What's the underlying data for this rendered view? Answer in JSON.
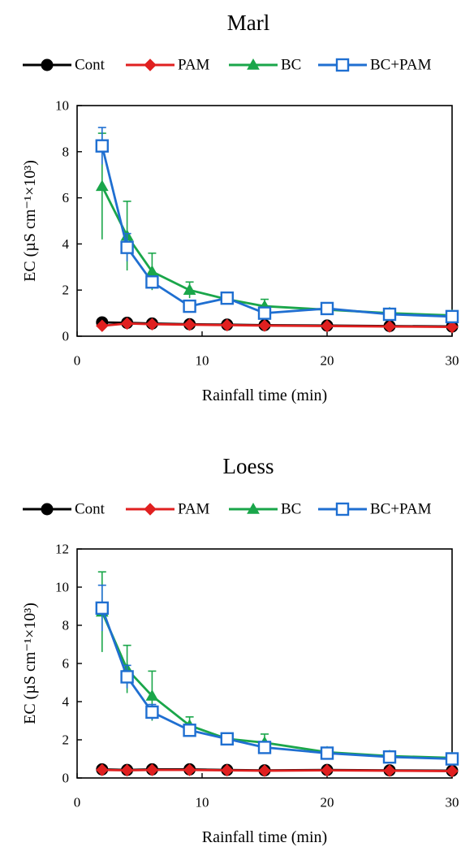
{
  "chart_data": [
    {
      "type": "line",
      "title": "Marl",
      "xlabel": "Rainfall time (min)",
      "ylabel": "EC (µS cm⁻¹×10³)",
      "xlim": [
        0,
        30
      ],
      "ylim": [
        0,
        10
      ],
      "xticks": [
        0,
        10,
        20,
        30
      ],
      "yticks": [
        0,
        2,
        4,
        6,
        8,
        10
      ],
      "grid": false,
      "legend_position": "top",
      "x": [
        2,
        4,
        6,
        9,
        12,
        15,
        20,
        25,
        30
      ],
      "series": [
        {
          "name": "Cont",
          "color": "#000000",
          "marker": "circle",
          "values": [
            0.6,
            0.58,
            0.55,
            0.52,
            0.5,
            0.48,
            0.46,
            0.44,
            0.42
          ],
          "err": []
        },
        {
          "name": "PAM",
          "color": "#e02020",
          "marker": "diamond",
          "values": [
            0.45,
            0.55,
            0.52,
            0.5,
            0.48,
            0.46,
            0.44,
            0.42,
            0.4
          ],
          "err": []
        },
        {
          "name": "BC",
          "color": "#1aa64a",
          "marker": "triangle",
          "values": [
            6.5,
            4.35,
            2.8,
            2.0,
            1.6,
            1.3,
            1.15,
            1.0,
            0.9
          ],
          "err": [
            2.3,
            1.5,
            0.8,
            0.35,
            0,
            0.3,
            0,
            0,
            0
          ]
        },
        {
          "name": "BC+PAM",
          "color": "#1f6fd1",
          "marker": "square",
          "values": [
            8.25,
            3.85,
            2.35,
            1.3,
            1.65,
            1.0,
            1.2,
            0.95,
            0.85
          ],
          "err": [
            0.8,
            0.6,
            0.2,
            0.25,
            0.15,
            0.2,
            0.15,
            0.1,
            0.1
          ]
        }
      ]
    },
    {
      "type": "line",
      "title": "Loess",
      "xlabel": "Rainfall time (min)",
      "ylabel": "EC (µS cm⁻¹×10³)",
      "xlim": [
        0,
        30
      ],
      "ylim": [
        0,
        12
      ],
      "xticks": [
        0,
        10,
        20,
        30
      ],
      "yticks": [
        0,
        2,
        4,
        6,
        8,
        10,
        12
      ],
      "grid": false,
      "legend_position": "top",
      "x": [
        2,
        4,
        6,
        9,
        12,
        15,
        20,
        25,
        30
      ],
      "series": [
        {
          "name": "Cont",
          "color": "#000000",
          "marker": "circle",
          "values": [
            0.45,
            0.42,
            0.45,
            0.45,
            0.42,
            0.4,
            0.42,
            0.4,
            0.38
          ],
          "err": []
        },
        {
          "name": "PAM",
          "color": "#e02020",
          "marker": "diamond",
          "values": [
            0.42,
            0.4,
            0.42,
            0.42,
            0.4,
            0.38,
            0.4,
            0.38,
            0.36
          ],
          "err": []
        },
        {
          "name": "BC",
          "color": "#1aa64a",
          "marker": "triangle",
          "values": [
            8.7,
            5.7,
            4.3,
            2.75,
            2.05,
            1.85,
            1.35,
            1.15,
            1.05
          ],
          "err": [
            2.1,
            1.25,
            1.3,
            0.45,
            0.15,
            0.45,
            0.1,
            0.1,
            0.1
          ]
        },
        {
          "name": "BC+PAM",
          "color": "#1f6fd1",
          "marker": "square",
          "values": [
            8.9,
            5.3,
            3.45,
            2.5,
            2.05,
            1.6,
            1.3,
            1.1,
            1.0
          ],
          "err": [
            1.2,
            0.6,
            0.4,
            0.25,
            0.15,
            0.15,
            0.1,
            0.1,
            0.1
          ]
        }
      ]
    }
  ]
}
